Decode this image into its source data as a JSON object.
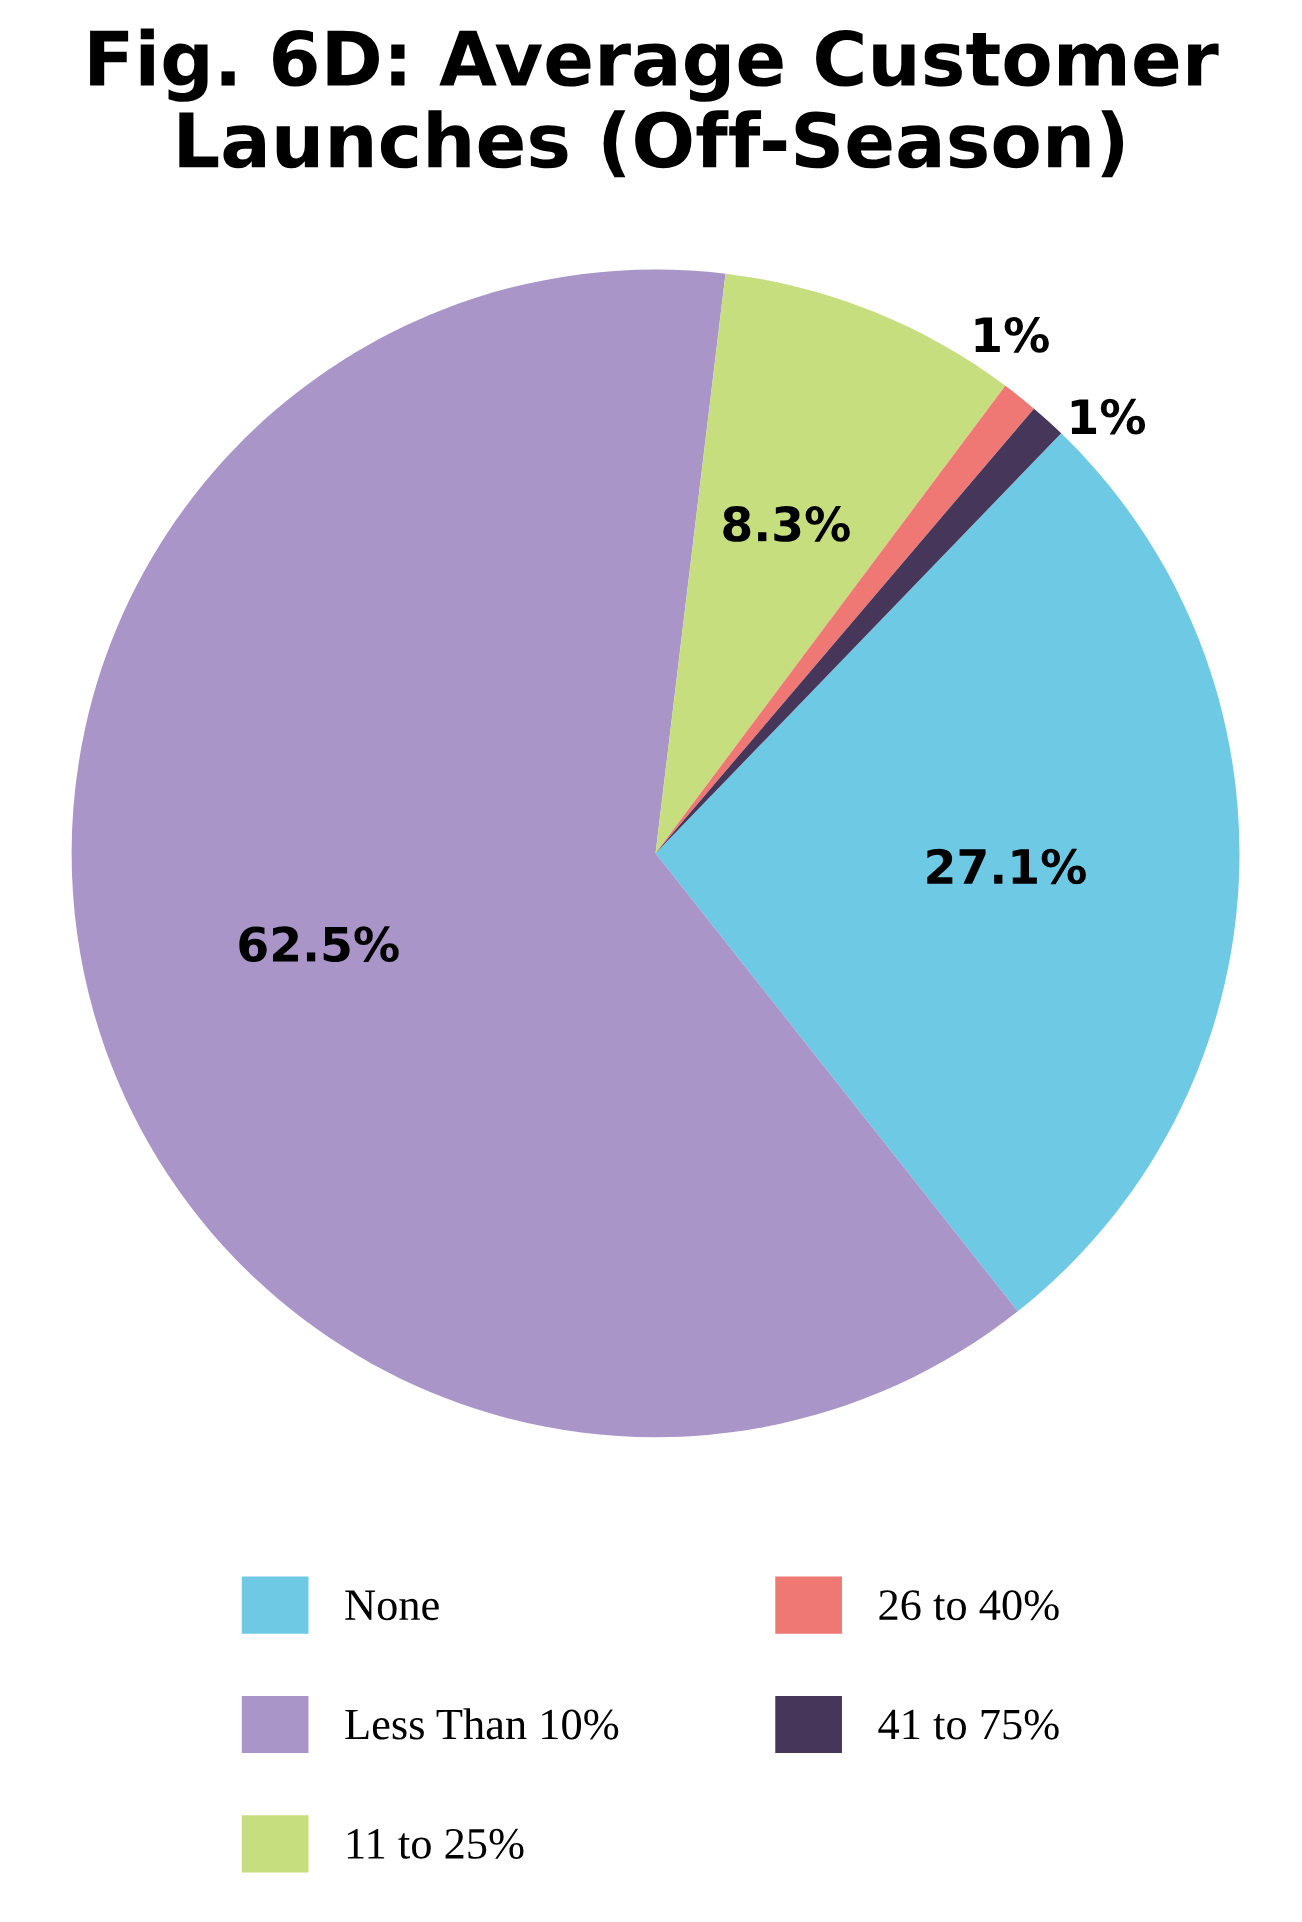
{
  "chart_data": {
    "type": "pie",
    "title": "Fig. 6D: Average Customer\nLaunches (Off-Season)",
    "categories": [
      "None",
      "Less Than 10%",
      "11 to 25%",
      "26 to 40%",
      "41 to 75%"
    ],
    "values": [
      27.1,
      62.5,
      8.3,
      1,
      1
    ],
    "value_labels": [
      "27.1%",
      "62.5%",
      "8.3%",
      "1%",
      "1%"
    ],
    "colors": [
      "#6ecae4",
      "#a995c7",
      "#c7de7e",
      "#ef7774",
      "#45365a"
    ],
    "legend": "bottom"
  }
}
